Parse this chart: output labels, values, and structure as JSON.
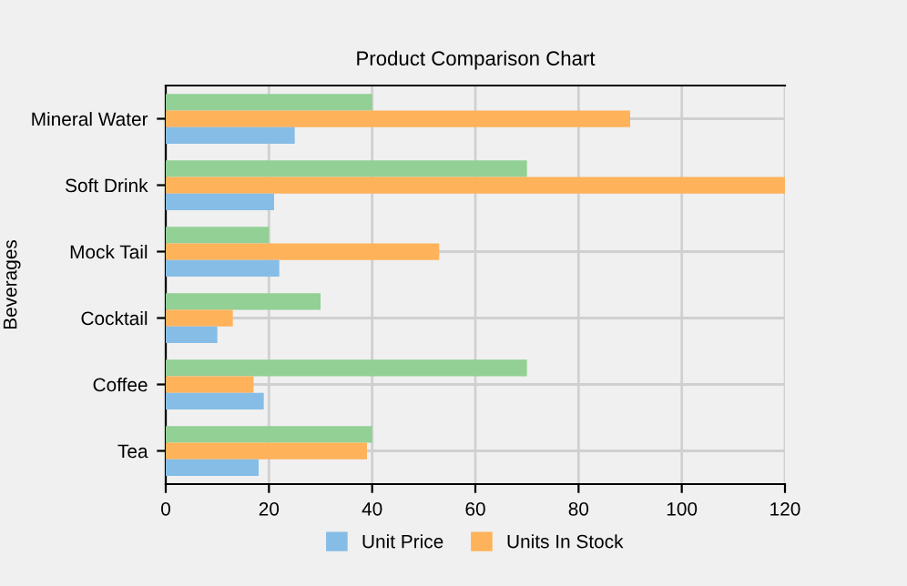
{
  "chart_data": {
    "type": "bar",
    "orientation": "horizontal",
    "title": "Product Comparison Chart",
    "ylabel": "Beverages",
    "categories": [
      "Mineral Water",
      "Soft Drink",
      "Mock Tail",
      "Cocktail",
      "Coffee",
      "Tea"
    ],
    "series": [
      {
        "color": "#92d095",
        "values": [
          40,
          70,
          20,
          30,
          70,
          40
        ]
      },
      {
        "name": "Units In Stock",
        "color": "#feb25a",
        "values": [
          90,
          120,
          53,
          13,
          17,
          39
        ]
      },
      {
        "name": "Unit Price",
        "color": "#86bde6",
        "values": [
          25,
          21,
          22,
          10,
          19,
          18
        ]
      }
    ],
    "xlim": [
      0,
      120
    ],
    "xticks": [
      0,
      20,
      40,
      60,
      80,
      100,
      120
    ],
    "grid": true,
    "legend": "bottom"
  }
}
